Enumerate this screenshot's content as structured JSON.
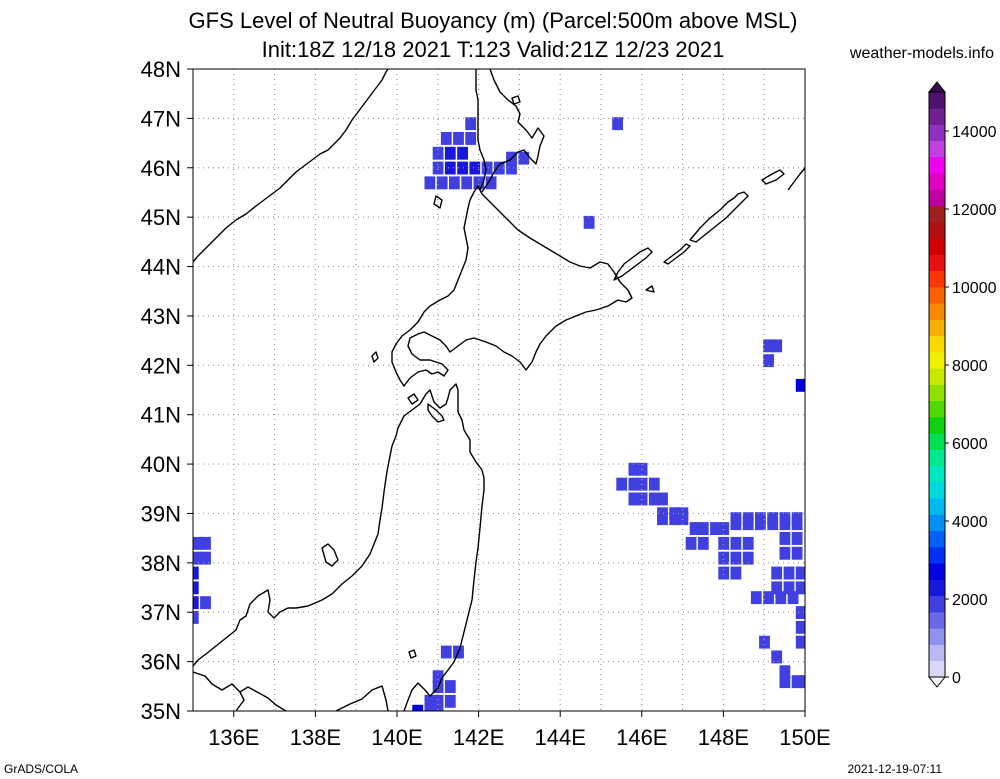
{
  "header": {
    "title": "GFS Level of Neutral Buoyancy (m) (Parcel:500m above MSL)",
    "subtitle": "Init:18Z 12/18 2021 T:123 Valid:21Z 12/23 2021",
    "credit": "weather-models.info"
  },
  "footer": {
    "left": "GrADS/COLA",
    "right": "2021-12-19-07:11"
  },
  "map": {
    "lon_range": [
      135,
      150
    ],
    "lat_range": [
      35,
      48
    ],
    "grid": "dotted every 1 degree",
    "lat_ticks": [
      "35N",
      "36N",
      "37N",
      "38N",
      "39N",
      "40N",
      "41N",
      "42N",
      "43N",
      "44N",
      "45N",
      "46N",
      "47N",
      "48N"
    ],
    "lon_ticks": [
      "136E",
      "138E",
      "140E",
      "142E",
      "144E",
      "146E",
      "148E",
      "150E"
    ],
    "lon_tick_values": [
      136,
      138,
      140,
      142,
      144,
      146,
      148,
      150
    ],
    "lat_tick_values": [
      35,
      36,
      37,
      38,
      39,
      40,
      41,
      42,
      43,
      44,
      45,
      46,
      47,
      48
    ]
  },
  "colorbar": {
    "labels": [
      "0",
      "2000",
      "4000",
      "6000",
      "8000",
      "10000",
      "12000",
      "14000"
    ],
    "label_values": [
      0,
      2000,
      4000,
      6000,
      8000,
      10000,
      12000,
      14000
    ],
    "max": 15000,
    "colors": [
      "#d8d8f8",
      "#b8b8f4",
      "#9090ee",
      "#6868e8",
      "#4040e0",
      "#1818dc",
      "#0000e0",
      "#0030f0",
      "#0060f8",
      "#0090f8",
      "#00b8f0",
      "#00d8e0",
      "#00e8c0",
      "#00e890",
      "#00e050",
      "#10d010",
      "#50d800",
      "#90e000",
      "#c8e800",
      "#f0f000",
      "#f8d800",
      "#f8b000",
      "#f88800",
      "#f86000",
      "#f83800",
      "#e81010",
      "#d00000",
      "#b01010",
      "#a02020",
      "#c000a0",
      "#e000c0",
      "#f000f0",
      "#c040e0",
      "#9030c0",
      "#702090",
      "#501070"
    ]
  },
  "data_cells": {
    "value_meaning": "LNB height (m)",
    "cells": [
      [
        141.2,
        46.6,
        1900
      ],
      [
        141.5,
        46.6,
        1900
      ],
      [
        141.8,
        46.6,
        1900
      ],
      [
        141.8,
        46.9,
        1900
      ],
      [
        141.0,
        46.3,
        1900
      ],
      [
        141.3,
        46.3,
        2200
      ],
      [
        141.6,
        46.3,
        2200
      ],
      [
        141.0,
        46.0,
        1900
      ],
      [
        141.3,
        46.0,
        2200
      ],
      [
        141.6,
        46.0,
        2200
      ],
      [
        141.9,
        46.0,
        2200
      ],
      [
        142.2,
        46.0,
        1900
      ],
      [
        142.5,
        46.0,
        1900
      ],
      [
        142.8,
        46.0,
        1900
      ],
      [
        142.8,
        46.2,
        1900
      ],
      [
        143.1,
        46.2,
        1900
      ],
      [
        140.8,
        45.7,
        1900
      ],
      [
        141.1,
        45.7,
        1900
      ],
      [
        141.4,
        45.7,
        1900
      ],
      [
        141.7,
        45.7,
        1900
      ],
      [
        142.0,
        45.7,
        1900
      ],
      [
        142.3,
        45.7,
        1900
      ],
      [
        145.4,
        46.9,
        1900
      ],
      [
        144.7,
        44.9,
        1900
      ],
      [
        149.1,
        42.4,
        1900
      ],
      [
        149.3,
        42.4,
        1900
      ],
      [
        149.1,
        42.1,
        1900
      ],
      [
        149.9,
        41.6,
        2500
      ],
      [
        145.8,
        39.9,
        1900
      ],
      [
        146.0,
        39.9,
        1900
      ],
      [
        145.5,
        39.6,
        1900
      ],
      [
        145.8,
        39.6,
        1900
      ],
      [
        146.0,
        39.6,
        1900
      ],
      [
        146.3,
        39.6,
        1900
      ],
      [
        145.8,
        39.3,
        1900
      ],
      [
        146.0,
        39.3,
        1900
      ],
      [
        146.3,
        39.3,
        1900
      ],
      [
        146.5,
        39.3,
        1900
      ],
      [
        146.5,
        39.0,
        1900
      ],
      [
        146.8,
        39.0,
        1900
      ],
      [
        147.0,
        39.0,
        1900
      ],
      [
        146.5,
        38.9,
        1900
      ],
      [
        146.8,
        38.9,
        1900
      ],
      [
        147.0,
        38.9,
        1900
      ],
      [
        147.3,
        38.7,
        1900
      ],
      [
        147.5,
        38.7,
        1900
      ],
      [
        147.8,
        38.7,
        1900
      ],
      [
        148.0,
        38.7,
        1900
      ],
      [
        147.2,
        38.4,
        1900
      ],
      [
        147.5,
        38.4,
        1900
      ],
      [
        148.0,
        38.4,
        1900
      ],
      [
        148.3,
        38.4,
        1900
      ],
      [
        148.6,
        38.4,
        1900
      ],
      [
        148.3,
        38.1,
        1900
      ],
      [
        148.6,
        38.1,
        1900
      ],
      [
        148.3,
        38.8,
        1900
      ],
      [
        148.6,
        38.8,
        1900
      ],
      [
        148.9,
        38.8,
        1900
      ],
      [
        149.2,
        38.8,
        1900
      ],
      [
        149.5,
        38.8,
        1900
      ],
      [
        149.8,
        38.8,
        1900
      ],
      [
        148.3,
        38.9,
        1900
      ],
      [
        148.6,
        38.9,
        1900
      ],
      [
        148.9,
        38.9,
        1900
      ],
      [
        149.2,
        38.9,
        1900
      ],
      [
        149.5,
        38.9,
        1900
      ],
      [
        149.8,
        38.9,
        1900
      ],
      [
        149.5,
        38.5,
        1900
      ],
      [
        149.8,
        38.5,
        1900
      ],
      [
        149.5,
        38.2,
        1900
      ],
      [
        149.8,
        38.2,
        1900
      ],
      [
        148.0,
        38.1,
        1900
      ],
      [
        148.0,
        37.8,
        1900
      ],
      [
        148.3,
        37.8,
        1900
      ],
      [
        149.3,
        37.8,
        1900
      ],
      [
        149.6,
        37.8,
        1900
      ],
      [
        149.9,
        37.8,
        1900
      ],
      [
        149.3,
        37.5,
        1900
      ],
      [
        149.6,
        37.5,
        1900
      ],
      [
        149.9,
        37.5,
        1900
      ],
      [
        148.8,
        37.3,
        1900
      ],
      [
        149.1,
        37.3,
        1900
      ],
      [
        149.4,
        37.3,
        1900
      ],
      [
        149.7,
        37.3,
        1900
      ],
      [
        149.9,
        37.0,
        1900
      ],
      [
        149.9,
        36.7,
        1900
      ],
      [
        149.9,
        36.4,
        1900
      ],
      [
        149.0,
        36.4,
        1900
      ],
      [
        149.3,
        36.1,
        1900
      ],
      [
        149.5,
        35.8,
        1900
      ],
      [
        149.5,
        35.6,
        1900
      ],
      [
        149.8,
        35.6,
        1900
      ],
      [
        150.0,
        35.6,
        1900
      ],
      [
        135.1,
        38.4,
        1900
      ],
      [
        135.3,
        38.4,
        1900
      ],
      [
        135.1,
        38.1,
        1900
      ],
      [
        135.3,
        38.1,
        1900
      ],
      [
        135.0,
        37.8,
        2300
      ],
      [
        135.0,
        37.5,
        2300
      ],
      [
        135.0,
        37.2,
        2300
      ],
      [
        135.3,
        37.2,
        1900
      ],
      [
        135.0,
        36.9,
        1900
      ],
      [
        141.2,
        36.2,
        1900
      ],
      [
        141.5,
        36.2,
        1900
      ],
      [
        141.0,
        35.7,
        1900
      ],
      [
        141.0,
        35.5,
        1900
      ],
      [
        141.3,
        35.5,
        1900
      ],
      [
        140.8,
        35.2,
        1900
      ],
      [
        141.0,
        35.2,
        1900
      ],
      [
        141.3,
        35.2,
        1900
      ],
      [
        140.5,
        35.0,
        2600
      ],
      [
        140.8,
        35.0,
        1900
      ],
      [
        141.0,
        35.0,
        1900
      ]
    ]
  }
}
